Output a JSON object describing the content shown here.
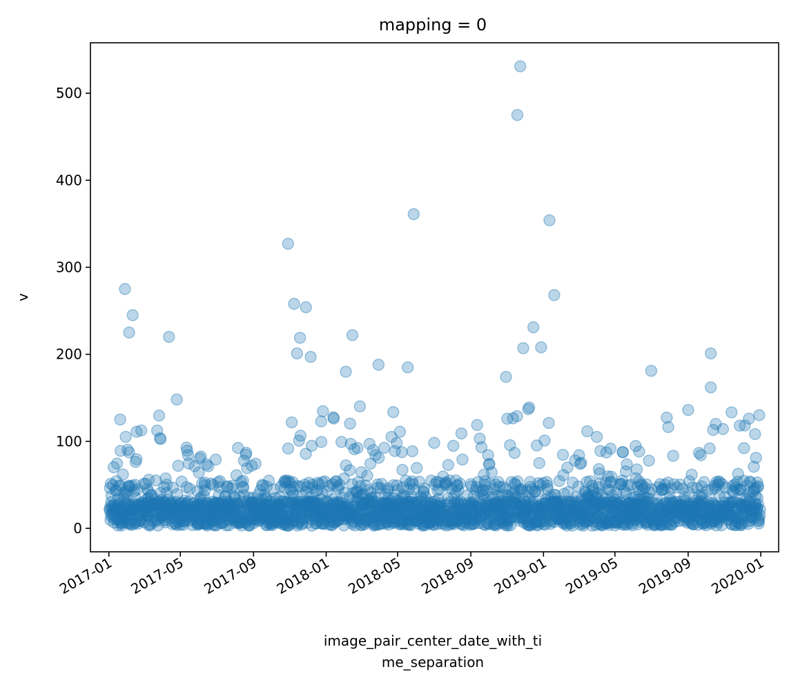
{
  "chart_data": {
    "type": "scatter",
    "title": "mapping = 0",
    "xlabel_lines": [
      "image_pair_center_date_with_ti",
      "me_separation"
    ],
    "ylabel": "v",
    "xlim": [
      "2016-12-01",
      "2020-01-31"
    ],
    "ylim": [
      -27,
      558
    ],
    "x_ticks": [
      "2017-01",
      "2017-05",
      "2017-09",
      "2018-01",
      "2018-05",
      "2018-09",
      "2019-01",
      "2019-05",
      "2019-09",
      "2020-01"
    ],
    "y_ticks": [
      0,
      100,
      200,
      300,
      400,
      500
    ],
    "grid": false,
    "legend": "none",
    "marker_color": "#1f77b4",
    "marker_alpha": 0.3,
    "notable_points": [
      {
        "x": "2017-01-28",
        "y": 275
      },
      {
        "x": "2017-02-10",
        "y": 245
      },
      {
        "x": "2017-02-04",
        "y": 225
      },
      {
        "x": "2017-01-20",
        "y": 125
      },
      {
        "x": "2017-04-12",
        "y": 220
      },
      {
        "x": "2017-04-25",
        "y": 148
      },
      {
        "x": "2017-10-29",
        "y": 327
      },
      {
        "x": "2017-11-08",
        "y": 258
      },
      {
        "x": "2017-11-28",
        "y": 254
      },
      {
        "x": "2017-11-18",
        "y": 219
      },
      {
        "x": "2017-11-13",
        "y": 201
      },
      {
        "x": "2017-12-06",
        "y": 197
      },
      {
        "x": "2018-02-14",
        "y": 222
      },
      {
        "x": "2018-02-03",
        "y": 180
      },
      {
        "x": "2018-03-30",
        "y": 188
      },
      {
        "x": "2018-05-28",
        "y": 361
      },
      {
        "x": "2018-05-18",
        "y": 185
      },
      {
        "x": "2018-11-23",
        "y": 531
      },
      {
        "x": "2018-11-18",
        "y": 475
      },
      {
        "x": "2018-10-30",
        "y": 174
      },
      {
        "x": "2018-11-28",
        "y": 207
      },
      {
        "x": "2018-12-15",
        "y": 231
      },
      {
        "x": "2019-01-11",
        "y": 354
      },
      {
        "x": "2019-01-19",
        "y": 268
      },
      {
        "x": "2018-12-28",
        "y": 208
      },
      {
        "x": "2019-07-01",
        "y": 181
      },
      {
        "x": "2019-10-09",
        "y": 201
      },
      {
        "x": "2019-10-09",
        "y": 162
      },
      {
        "x": "2019-09-01",
        "y": 136
      }
    ]
  }
}
